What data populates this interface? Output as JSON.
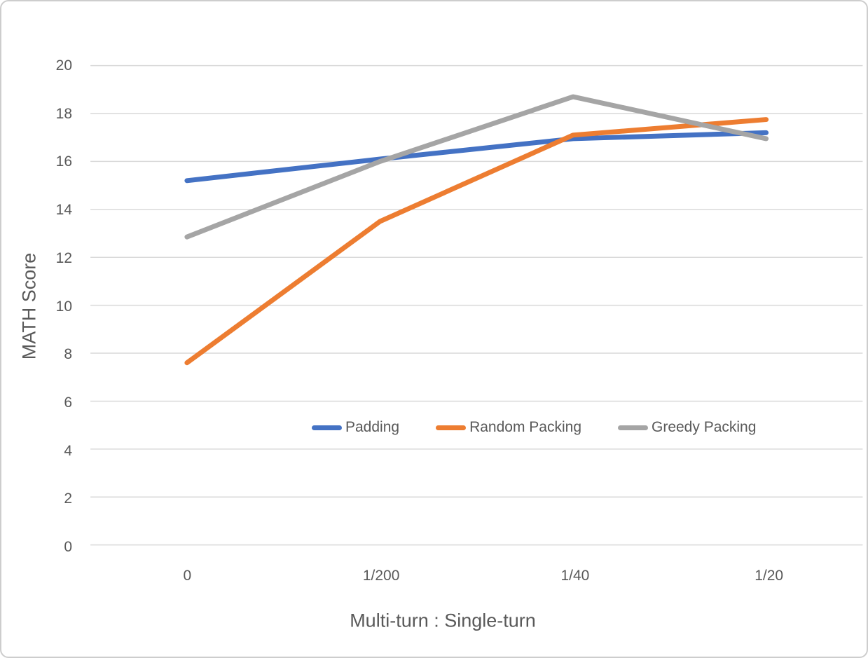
{
  "chart_data": {
    "type": "line",
    "title": "",
    "xlabel": "Multi-turn : Single-turn",
    "ylabel": "MATH Score",
    "categories": [
      "0",
      "1/200",
      "1/40",
      "1/20"
    ],
    "series": [
      {
        "name": "Padding",
        "color": "#4472C4",
        "values": [
          15.2,
          16.1,
          16.95,
          17.2
        ]
      },
      {
        "name": "Random Packing",
        "color": "#ED7D31",
        "values": [
          7.6,
          13.5,
          17.1,
          17.75
        ]
      },
      {
        "name": "Greedy Packing",
        "color": "#A5A5A5",
        "values": [
          12.85,
          16.0,
          18.7,
          16.95
        ]
      }
    ],
    "ylim": [
      0,
      20
    ],
    "ytick_step": 2,
    "y_tick_labels": [
      "0",
      "2",
      "4",
      "6",
      "8",
      "10",
      "12",
      "14",
      "16",
      "18",
      "20"
    ],
    "grid": "horizontal-only",
    "legend_position": "inside-plot-lower-middle",
    "line_width": 7
  },
  "ui_colors": {
    "background": "#FFFFFF",
    "border": "#CDCDCD",
    "gridline": "#D9D9D9",
    "text": "#595959"
  }
}
